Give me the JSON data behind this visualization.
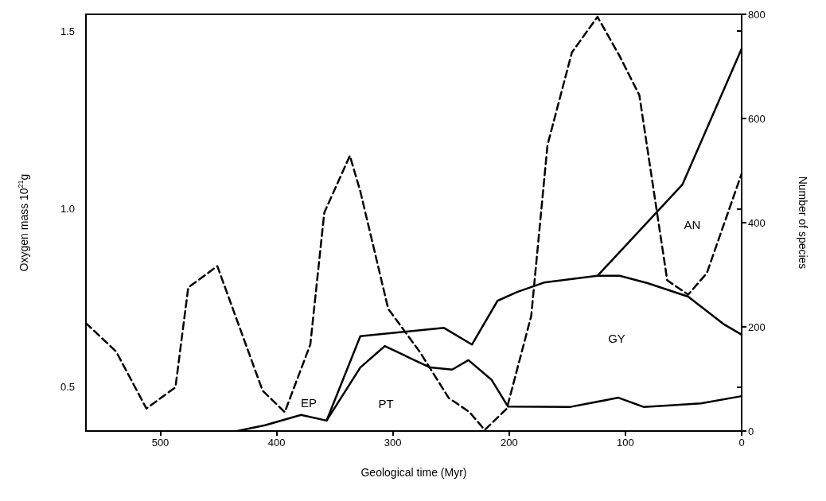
{
  "chart_data": {
    "type": "line",
    "xlabel": "Geological time (Myr)",
    "ylabel": "Oxygen mass 10$^{21}$g",
    "y2label": "Number of species",
    "xlim": [
      564,
      0
    ],
    "xticks": [
      500,
      400,
      300,
      200,
      100,
      0
    ],
    "ylim": [
      0.377,
      1.547
    ],
    "yticks": [
      0.5,
      {
        "value": 1,
        "label": "1.0"
      },
      1.5
    ],
    "y2lim": [
      0,
      800
    ],
    "y2ticks": [
      0,
      200,
      400,
      600,
      800
    ],
    "marker": "none",
    "series": [
      {
        "color": "#000000",
        "line_style": "dashed",
        "x": [
          564,
          538,
          512,
          487,
          476,
          451,
          412,
          393,
          371,
          359,
          337,
          328,
          304,
          277,
          252,
          234,
          221,
          202,
          181,
          167,
          146,
          124,
          105,
          88,
          64,
          46,
          30,
          0
        ],
        "values": [
          0.68,
          0.6,
          0.44,
          0.5,
          0.78,
          0.84,
          0.49,
          0.43,
          0.62,
          0.99,
          1.15,
          1.05,
          0.72,
          0.6,
          0.47,
          0.43,
          0.38,
          0.44,
          0.7,
          1.18,
          1.44,
          1.54,
          1.43,
          1.32,
          0.8,
          0.76,
          0.82,
          1.1
        ]
      },
      {
        "color": "#000000",
        "axis": "y2",
        "x": [
          434,
          410,
          379,
          357,
          328,
          307,
          268,
          249,
          235,
          215,
          201,
          148,
          106,
          84,
          35,
          0
        ],
        "values": [
          0,
          11,
          31,
          20,
          122,
          163,
          122,
          118,
          136,
          98,
          47,
          46,
          64,
          46,
          53,
          67
        ]
      },
      {
        "color": "#000000",
        "axis": "y2",
        "x": [
          357,
          328,
          256,
          232,
          210,
          193,
          170,
          124,
          105,
          81,
          46,
          16,
          0
        ],
        "values": [
          20,
          182,
          198,
          166,
          250,
          267,
          285,
          298,
          298,
          284,
          258,
          206,
          185
        ]
      },
      {
        "color": "#000000",
        "axis": "y2",
        "x": [
          124,
          51,
          0
        ],
        "values": [
          298,
          473,
          734
        ]
      }
    ],
    "annotations": [
      "EP",
      "PT",
      "GY",
      "AN"
    ]
  }
}
